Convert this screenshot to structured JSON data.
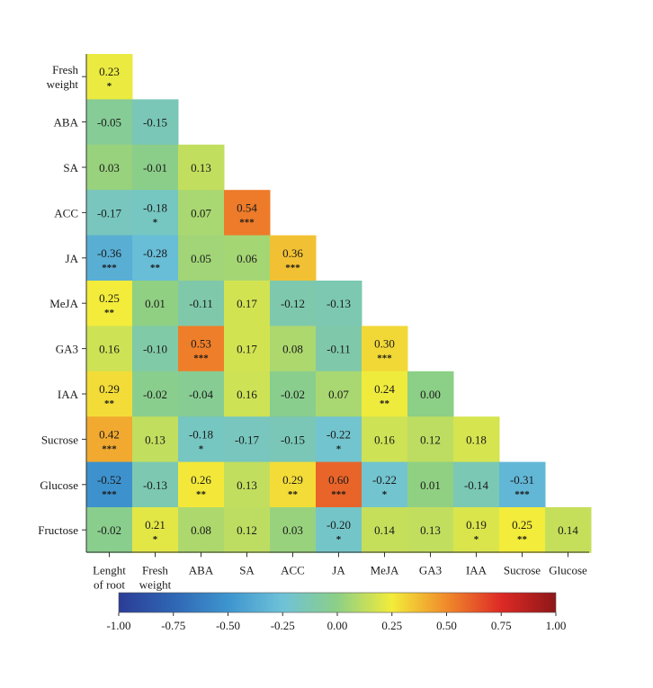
{
  "chart_data": {
    "type": "heatmap",
    "title": "",
    "colorbar": {
      "min": -1.0,
      "max": 1.0,
      "ticks": [
        "-1.00",
        "-0.75",
        "-0.50",
        "-0.25",
        "0.00",
        "0.25",
        "0.50",
        "0.75",
        "1.00"
      ],
      "stops": [
        {
          "v": -1.0,
          "c": "#2b3c97"
        },
        {
          "v": -0.75,
          "c": "#2f66b4"
        },
        {
          "v": -0.5,
          "c": "#3e95cf"
        },
        {
          "v": -0.25,
          "c": "#6ec2d8"
        },
        {
          "v": 0.0,
          "c": "#8ccf86"
        },
        {
          "v": 0.25,
          "c": "#f3ec3a"
        },
        {
          "v": 0.5,
          "c": "#f08a2b"
        },
        {
          "v": 0.75,
          "c": "#dd2a26"
        },
        {
          "v": 1.0,
          "c": "#8e1718"
        }
      ]
    },
    "row_labels": [
      [
        "Fresh",
        "weight"
      ],
      [
        "ABA"
      ],
      [
        "SA"
      ],
      [
        "ACC"
      ],
      [
        "JA"
      ],
      [
        "MeJA"
      ],
      [
        "GA3"
      ],
      [
        "IAA"
      ],
      [
        "Sucrose"
      ],
      [
        "Glucose"
      ],
      [
        "Fructose"
      ]
    ],
    "col_labels": [
      [
        "Lenght",
        "of root"
      ],
      [
        "Fresh",
        "weight"
      ],
      [
        "ABA"
      ],
      [
        "SA"
      ],
      [
        "ACC"
      ],
      [
        "JA"
      ],
      [
        "MeJA"
      ],
      [
        "GA3"
      ],
      [
        "IAA"
      ],
      [
        "Sucrose"
      ],
      [
        "Glucose"
      ]
    ],
    "values": [
      [
        "0.23"
      ],
      [
        "-0.05",
        "-0.15"
      ],
      [
        "0.03",
        "-0.01",
        "0.13"
      ],
      [
        "-0.17",
        "-0.18",
        "0.07",
        "0.54"
      ],
      [
        "-0.36",
        "-0.28",
        "0.05",
        "0.06",
        "0.36"
      ],
      [
        "0.25",
        "0.01",
        "-0.11",
        "0.17",
        "-0.12",
        "-0.13"
      ],
      [
        "0.16",
        "-0.10",
        "0.53",
        "0.17",
        "0.08",
        "-0.11",
        "0.30"
      ],
      [
        "0.29",
        "-0.02",
        "-0.04",
        "0.16",
        "-0.02",
        "0.07",
        "0.24",
        "0.00"
      ],
      [
        "0.42",
        "0.13",
        "-0.18",
        "-0.17",
        "-0.15",
        "-0.22",
        "0.16",
        "0.12",
        "0.18"
      ],
      [
        "-0.52",
        "-0.13",
        "0.26",
        "0.13",
        "0.29",
        "0.60",
        "-0.22",
        "0.01",
        "-0.14",
        "-0.31"
      ],
      [
        "-0.02",
        "0.21",
        "0.08",
        "0.12",
        "0.03",
        "-0.20",
        "0.14",
        "0.13",
        "0.19",
        "0.25",
        "0.14"
      ]
    ],
    "significance": [
      [
        "*"
      ],
      [
        "",
        ""
      ],
      [
        "",
        "",
        ""
      ],
      [
        "",
        "*",
        "",
        "***"
      ],
      [
        "***",
        "**",
        "",
        "",
        "***"
      ],
      [
        "**",
        "",
        "",
        "",
        "",
        ""
      ],
      [
        "",
        "",
        "***",
        "",
        "",
        "",
        "***"
      ],
      [
        "**",
        "",
        "",
        "",
        "",
        "",
        "**",
        ""
      ],
      [
        "***",
        "",
        "*",
        "",
        "",
        "*",
        "",
        "",
        ""
      ],
      [
        "***",
        "",
        "**",
        "",
        "**",
        "***",
        "*",
        "",
        "",
        "***"
      ],
      [
        "",
        "*",
        "",
        "",
        "",
        "*",
        "",
        "",
        "*",
        "**",
        ""
      ]
    ]
  }
}
